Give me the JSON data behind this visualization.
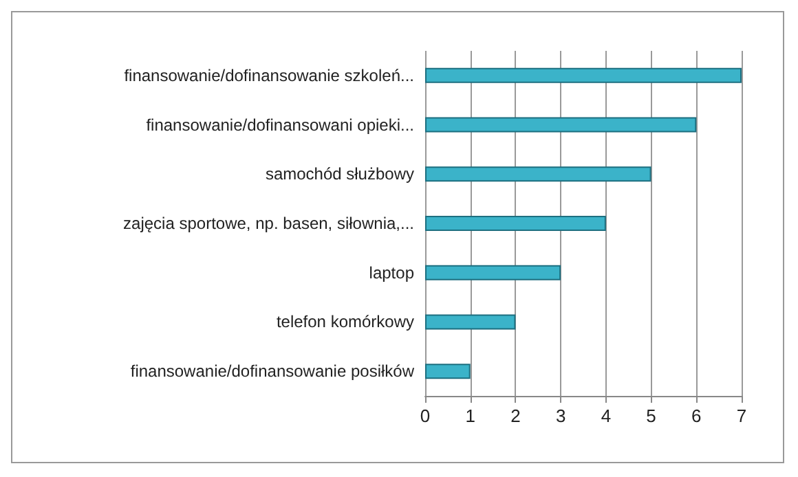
{
  "chart_data": {
    "type": "bar",
    "orientation": "horizontal",
    "categories": [
      "finansowanie/dofinansowanie szkoleń...",
      "finansowanie/dofinansowani opieki...",
      "samochód służbowy",
      "zajęcia sportowe, np. basen, siłownia,...",
      "laptop",
      "telefon komórkowy",
      "finansowanie/dofinansowanie posiłków"
    ],
    "values": [
      7,
      6,
      5,
      4,
      3,
      2,
      1
    ],
    "color": "#3bb3c9",
    "xlim": [
      0,
      7
    ],
    "xticks": [
      0,
      1,
      2,
      3,
      4,
      5,
      6,
      7
    ],
    "grid": "x"
  }
}
